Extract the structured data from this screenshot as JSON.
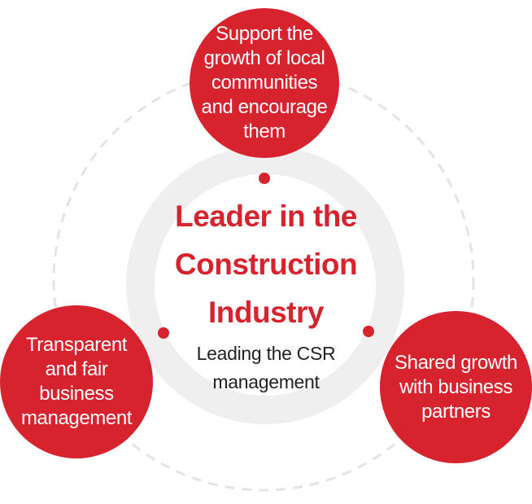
{
  "colors": {
    "accent": "#d6232e",
    "center_ring": "#efefef",
    "dashed_ring": "#e4e4e4",
    "text_dark": "#222222"
  },
  "center": {
    "title_lines": [
      "Leader in  the",
      "Construction",
      "Industry"
    ],
    "subtitle_lines": [
      "Leading the CSR",
      "management"
    ]
  },
  "nodes": {
    "top": {
      "lines": [
        "Support the",
        "growth of local",
        "communities",
        "and encourage",
        "them"
      ]
    },
    "left": {
      "lines": [
        "Transparent",
        "and fair",
        "business",
        "management"
      ]
    },
    "right": {
      "lines": [
        "Shared growth",
        "with business",
        "partners"
      ]
    }
  }
}
